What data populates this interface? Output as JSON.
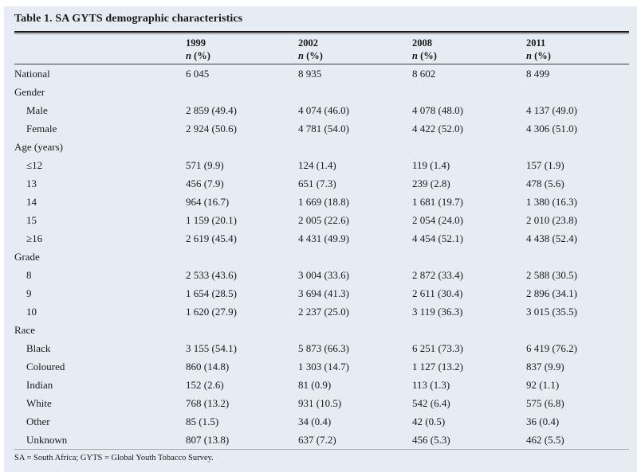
{
  "title": "Table 1. SA GYTS demographic characteristics",
  "columns": {
    "years": [
      "1999",
      "2002",
      "2008",
      "2011"
    ],
    "subheader_n": "n",
    "subheader_pct": "(%)"
  },
  "table": {
    "rows": [
      {
        "label": "National",
        "group": false,
        "indent": false,
        "values": [
          "6 045",
          "8 935",
          "8 602",
          "8 499"
        ]
      },
      {
        "label": "Gender",
        "group": true,
        "indent": false,
        "values": []
      },
      {
        "label": "Male",
        "group": false,
        "indent": true,
        "values": [
          "2 859 (49.4)",
          "4 074 (46.0)",
          "4 078 (48.0)",
          "4 137 (49.0)"
        ]
      },
      {
        "label": "Female",
        "group": false,
        "indent": true,
        "values": [
          "2 924 (50.6)",
          "4 781 (54.0)",
          "4 422 (52.0)",
          "4 306 (51.0)"
        ]
      },
      {
        "label": "Age (years)",
        "group": true,
        "indent": false,
        "values": []
      },
      {
        "label": "≤12",
        "group": false,
        "indent": true,
        "values": [
          "571 (9.9)",
          "124 (1.4)",
          "119 (1.4)",
          "157 (1.9)"
        ]
      },
      {
        "label": "13",
        "group": false,
        "indent": true,
        "values": [
          "456 (7.9)",
          "651 (7.3)",
          "239 (2.8)",
          "478 (5.6)"
        ]
      },
      {
        "label": "14",
        "group": false,
        "indent": true,
        "values": [
          "964 (16.7)",
          "1 669 (18.8)",
          "1 681 (19.7)",
          "1 380 (16.3)"
        ]
      },
      {
        "label": "15",
        "group": false,
        "indent": true,
        "values": [
          "1 159 (20.1)",
          "2 005 (22.6)",
          "2 054 (24.0)",
          "2 010 (23.8)"
        ]
      },
      {
        "label": "≥16",
        "group": false,
        "indent": true,
        "values": [
          "2 619 (45.4)",
          "4 431 (49.9)",
          "4 454 (52.1)",
          "4 438 (52.4)"
        ]
      },
      {
        "label": "Grade",
        "group": true,
        "indent": false,
        "values": []
      },
      {
        "label": "8",
        "group": false,
        "indent": true,
        "values": [
          "2 533 (43.6)",
          "3 004 (33.6)",
          "2 872 (33.4)",
          "2 588 (30.5)"
        ]
      },
      {
        "label": "9",
        "group": false,
        "indent": true,
        "values": [
          "1 654 (28.5)",
          "3 694 (41.3)",
          "2 611 (30.4)",
          "2 896 (34.1)"
        ]
      },
      {
        "label": "10",
        "group": false,
        "indent": true,
        "values": [
          "1 620 (27.9)",
          "2 237 (25.0)",
          "3 119 (36.3)",
          "3 015 (35.5)"
        ]
      },
      {
        "label": "Race",
        "group": true,
        "indent": false,
        "values": []
      },
      {
        "label": "Black",
        "group": false,
        "indent": true,
        "values": [
          "3 155 (54.1)",
          "5 873 (66.3)",
          "6 251 (73.3)",
          "6 419 (76.2)"
        ]
      },
      {
        "label": "Coloured",
        "group": false,
        "indent": true,
        "values": [
          "860 (14.8)",
          "1 303 (14.7)",
          "1 127 (13.2)",
          "837 (9.9)"
        ]
      },
      {
        "label": "Indian",
        "group": false,
        "indent": true,
        "values": [
          "152 (2.6)",
          "81 (0.9)",
          "113 (1.3)",
          "92 (1.1)"
        ]
      },
      {
        "label": "White",
        "group": false,
        "indent": true,
        "values": [
          "768 (13.2)",
          "931 (10.5)",
          "542 (6.4)",
          "575 (6.8)"
        ]
      },
      {
        "label": "Other",
        "group": false,
        "indent": true,
        "values": [
          "85 (1.5)",
          "34 (0.4)",
          "42 (0.5)",
          "36 (0.4)"
        ]
      },
      {
        "label": "Unknown",
        "group": false,
        "indent": true,
        "values": [
          "807 (13.8)",
          "637 (7.2)",
          "456 (5.3)",
          "462 (5.5)"
        ]
      }
    ]
  },
  "footnote": "SA = South Africa; GYTS = Global Youth Tobacco Survey.",
  "colors": {
    "card_bg": "#e7ebf3",
    "text": "#1a1a1a",
    "rule_heavy": "#1a1a1a",
    "rule_thin": "#3a3f47",
    "rule_footnote": "#a8adb8"
  }
}
